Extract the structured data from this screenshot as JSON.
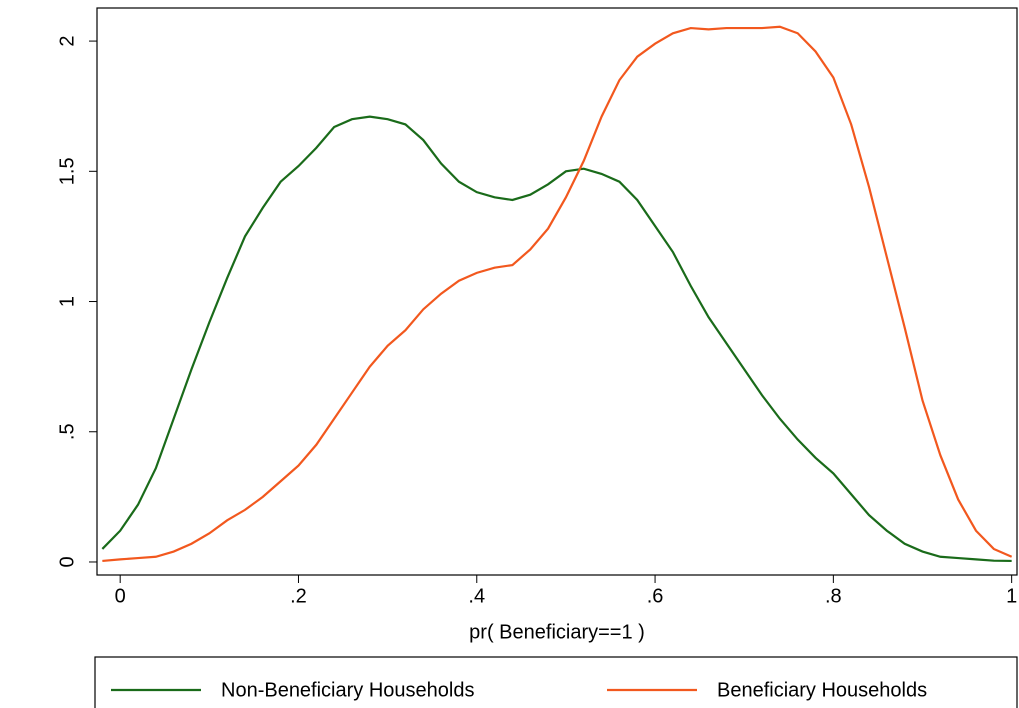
{
  "chart_data": {
    "type": "line",
    "x_label": "pr( Beneficiary==1 )",
    "x": [
      -0.02,
      0,
      0.02,
      0.04,
      0.06,
      0.08,
      0.1,
      0.12,
      0.14,
      0.16,
      0.18,
      0.2,
      0.22,
      0.24,
      0.26,
      0.28,
      0.3,
      0.32,
      0.34,
      0.36,
      0.38,
      0.4,
      0.42,
      0.44,
      0.46,
      0.48,
      0.5,
      0.52,
      0.54,
      0.56,
      0.58,
      0.6,
      0.62,
      0.64,
      0.66,
      0.68,
      0.7,
      0.72,
      0.74,
      0.76,
      0.78,
      0.8,
      0.82,
      0.84,
      0.86,
      0.88,
      0.9,
      0.92,
      0.94,
      0.96,
      0.98,
      1.0
    ],
    "series": [
      {
        "name": "Non-Beneficiary Households",
        "color": "#1a6b1a",
        "values": [
          0.05,
          0.12,
          0.22,
          0.36,
          0.55,
          0.74,
          0.92,
          1.09,
          1.25,
          1.36,
          1.46,
          1.52,
          1.59,
          1.67,
          1.7,
          1.71,
          1.7,
          1.68,
          1.62,
          1.53,
          1.46,
          1.42,
          1.4,
          1.39,
          1.41,
          1.45,
          1.5,
          1.51,
          1.49,
          1.46,
          1.39,
          1.29,
          1.19,
          1.06,
          0.94,
          0.84,
          0.74,
          0.64,
          0.55,
          0.47,
          0.4,
          0.34,
          0.26,
          0.18,
          0.12,
          0.07,
          0.04,
          0.02,
          0.015,
          0.01,
          0.005,
          0.004
        ]
      },
      {
        "name": "Beneficiary Households",
        "color": "#f2581e",
        "values": [
          0.004,
          0.01,
          0.015,
          0.02,
          0.04,
          0.07,
          0.11,
          0.16,
          0.2,
          0.25,
          0.31,
          0.37,
          0.45,
          0.55,
          0.65,
          0.75,
          0.83,
          0.89,
          0.97,
          1.03,
          1.08,
          1.11,
          1.13,
          1.14,
          1.2,
          1.28,
          1.4,
          1.54,
          1.71,
          1.85,
          1.94,
          1.99,
          2.03,
          2.05,
          2.045,
          2.05,
          2.05,
          2.05,
          2.055,
          2.03,
          1.96,
          1.86,
          1.68,
          1.44,
          1.17,
          0.9,
          0.62,
          0.41,
          0.24,
          0.12,
          0.05,
          0.02
        ]
      }
    ],
    "xlim": [
      -0.026,
      1.006
    ],
    "ylim": [
      -0.05,
      2.127
    ],
    "xticks": [
      0,
      {
        "value": 0.2,
        "label": ".2"
      },
      {
        "value": 0.4,
        "label": ".4"
      },
      {
        "value": 0.6,
        "label": ".6"
      },
      {
        "value": 0.8,
        "label": ".8"
      },
      1
    ],
    "yticks": [
      0,
      {
        "value": 0.5,
        "label": ".5"
      },
      1,
      1.5,
      2
    ],
    "grid": false,
    "legend": "bottom"
  }
}
